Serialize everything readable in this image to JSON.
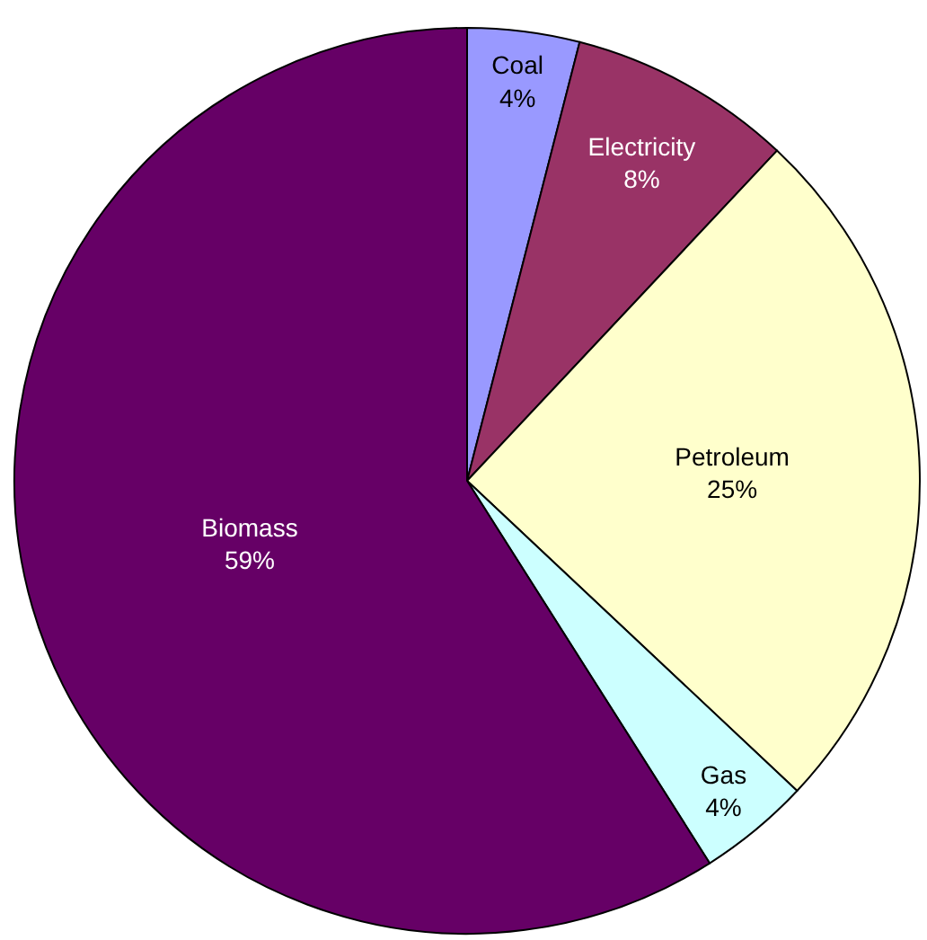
{
  "chart_data": {
    "type": "pie",
    "categories": [
      "Coal",
      "Electricity",
      "Petroleum",
      "Gas",
      "Biomass"
    ],
    "values": [
      4,
      8,
      25,
      4,
      59
    ],
    "value_labels": [
      "4%",
      "8%",
      "25%",
      "4%",
      "59%"
    ],
    "colors": [
      "#9999ff",
      "#993366",
      "#ffffcc",
      "#ccffff",
      "#660066"
    ],
    "legend": false
  }
}
